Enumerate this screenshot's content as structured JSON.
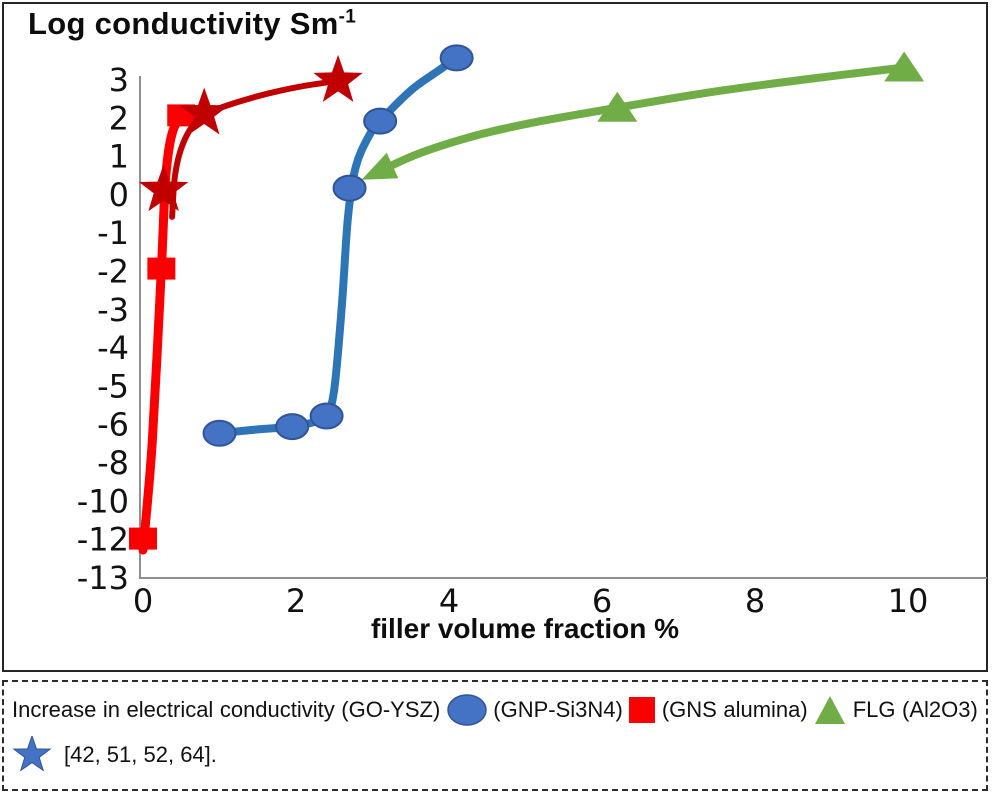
{
  "chart_data": {
    "type": "line",
    "title_text": "Log conductivity Sm",
    "title_sup": "-1",
    "xlabel": "filler volume fraction %",
    "x_ticks": [
      0,
      2,
      4,
      6,
      8,
      10
    ],
    "y_ticks": [
      3,
      2,
      1,
      0,
      -1,
      -2,
      -3,
      -4,
      -5,
      -6,
      -8,
      -10,
      -12,
      -13
    ],
    "y_axis_broken": true,
    "xlim": [
      0,
      11
    ],
    "axis_color": "#8F8F8F",
    "legend_position": "caption-below",
    "grid": false,
    "series": [
      {
        "id": "gns-alumina",
        "name": "GNS alumina",
        "marker": "triangle",
        "line_color": "#70AD47",
        "fill": "#70AD47",
        "line_width": 8,
        "start_arrow": true,
        "points": [
          [
            3.0,
            0.5
          ],
          [
            6.2,
            2.25
          ],
          [
            9.95,
            3.3
          ]
        ],
        "curve": [
          [
            3.0,
            0.5
          ],
          [
            3.6,
            1.05
          ],
          [
            4.4,
            1.55
          ],
          [
            5.2,
            1.9
          ],
          [
            6.2,
            2.25
          ],
          [
            7.4,
            2.65
          ],
          [
            8.7,
            3.0
          ],
          [
            9.95,
            3.3
          ]
        ]
      },
      {
        "id": "go-ysz",
        "name": "GO-YSZ",
        "marker": "circle",
        "line_color": "#2E75B6",
        "fill": "#4472C4",
        "stroke": "#2F5597",
        "line_width": 8,
        "points": [
          [
            1.0,
            -6.5
          ],
          [
            1.95,
            -6.15
          ],
          [
            2.4,
            -5.8
          ],
          [
            2.7,
            0.15
          ],
          [
            3.1,
            1.9
          ],
          [
            4.1,
            3.55
          ]
        ],
        "curve": [
          [
            1.0,
            -6.5
          ],
          [
            1.5,
            -6.3
          ],
          [
            1.95,
            -6.15
          ],
          [
            2.25,
            -5.95
          ],
          [
            2.4,
            -5.8
          ],
          [
            2.5,
            -5.1
          ],
          [
            2.6,
            -2.9
          ],
          [
            2.68,
            -0.6
          ],
          [
            2.78,
            0.7
          ],
          [
            2.95,
            1.5
          ],
          [
            3.1,
            1.9
          ],
          [
            3.5,
            2.7
          ],
          [
            3.85,
            3.2
          ],
          [
            4.1,
            3.55
          ]
        ]
      },
      {
        "id": "gnp-si3n4",
        "name": "GNP-Si3N4",
        "marker": "square",
        "line_color": "#FB0000",
        "fill": "#FB0000",
        "line_width": 9,
        "points": [
          [
            0.0,
            -12
          ],
          [
            0.24,
            -1.95
          ],
          [
            0.5,
            2.05
          ]
        ],
        "curve": [
          [
            0.0,
            -12.3
          ],
          [
            0.12,
            -7.0
          ],
          [
            0.24,
            -1.95
          ],
          [
            0.3,
            0.5
          ],
          [
            0.4,
            1.7
          ],
          [
            0.58,
            2.05
          ],
          [
            0.82,
            2.12
          ]
        ]
      },
      {
        "id": "flg-al2o3",
        "name": "FLG (Al2O3)",
        "marker": "star",
        "line_color": "#C00000",
        "fill": "#C00000",
        "line_width": 6,
        "points": [
          [
            0.27,
            0.1
          ],
          [
            0.8,
            2.1
          ],
          [
            2.55,
            2.95
          ]
        ],
        "curve": [
          [
            0.38,
            -0.6
          ],
          [
            0.42,
            0.5
          ],
          [
            0.52,
            1.3
          ],
          [
            0.7,
            1.9
          ],
          [
            0.95,
            2.2
          ],
          [
            1.5,
            2.55
          ],
          [
            2.05,
            2.8
          ],
          [
            2.55,
            2.95
          ]
        ]
      }
    ]
  },
  "caption": {
    "line1": [
      {
        "t": "Increase"
      },
      {
        "t": "in"
      },
      {
        "t": "electrical"
      },
      {
        "t": "conductivity"
      },
      {
        "t": "(GO-YSZ)"
      },
      {
        "icon": "ellipse",
        "color": "#4472C4"
      },
      {
        "t": "(GNP-Si3N4)"
      },
      {
        "icon": "square",
        "color": "#FB0000"
      },
      {
        "t": "(GNS"
      },
      {
        "t": "alumina)"
      },
      {
        "icon": "triangle",
        "color": "#70AD47"
      },
      {
        "t": "FLG"
      },
      {
        "t": "(Al2O3)"
      }
    ],
    "line2_text": "[42, 51, 52, 64].",
    "star_color": "#4472C4",
    "star_stroke": "#2F5597"
  }
}
